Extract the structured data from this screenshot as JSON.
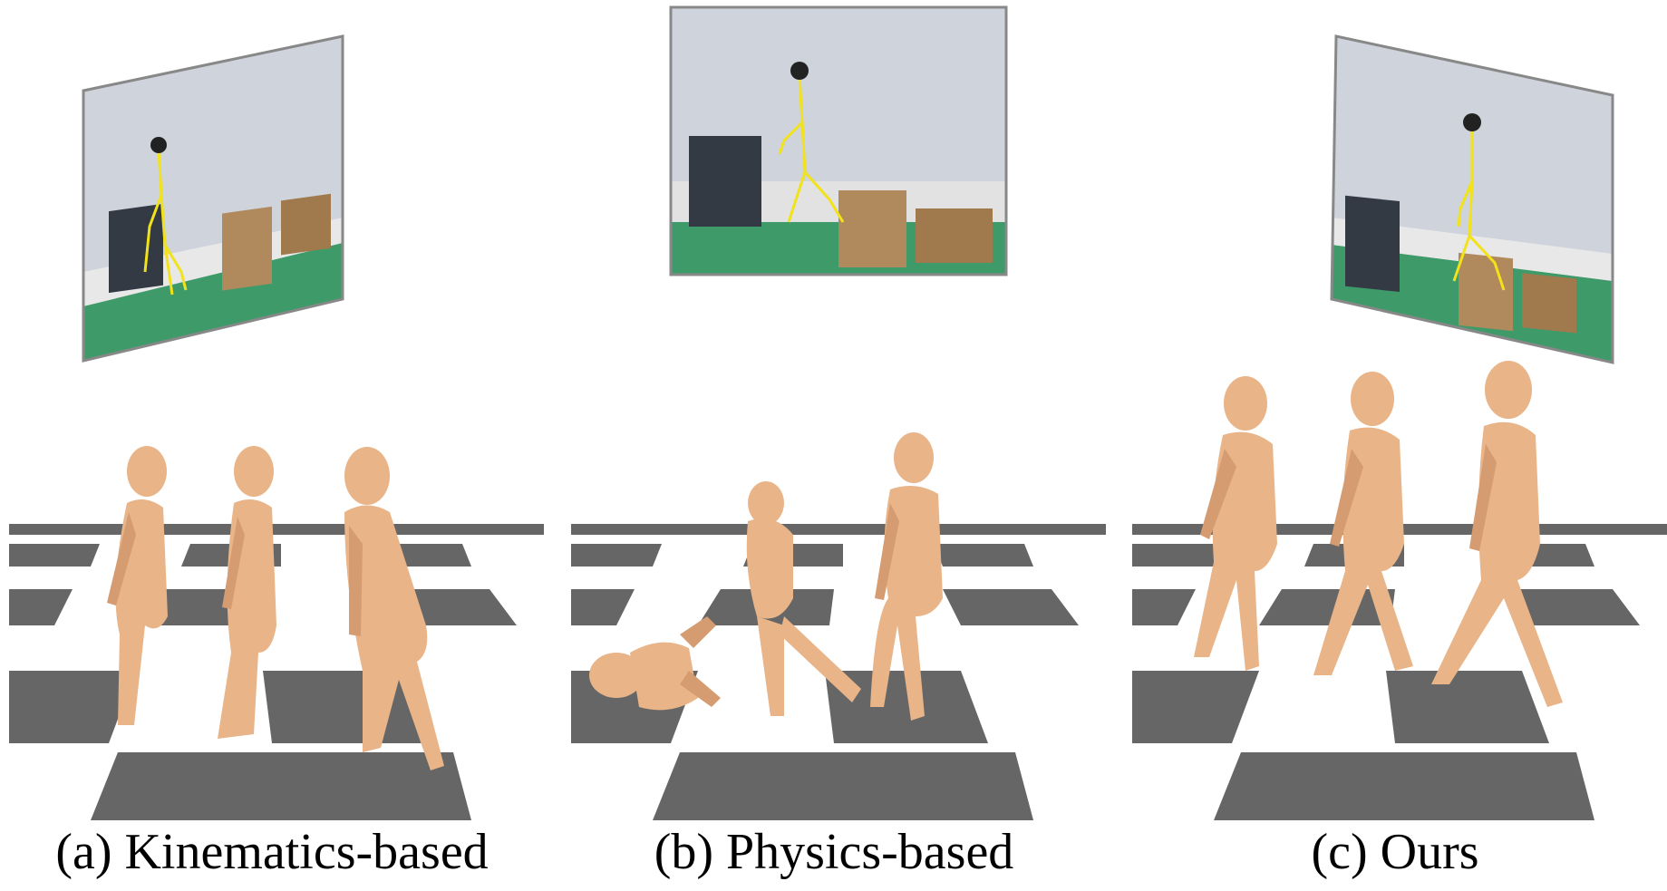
{
  "figure": {
    "panels": [
      {
        "id": "a",
        "caption": "(a) Kinematics-based"
      },
      {
        "id": "b",
        "caption": "(b) Physics-based"
      },
      {
        "id": "c",
        "caption": "(c) Ours"
      }
    ]
  },
  "colors": {
    "skin": "#e8b488",
    "skin_shade": "#c98f63",
    "floor_dark": "#666666",
    "floor_light": "#ffffff",
    "skeleton": "#f2e21a",
    "video_floor": "#3f9a6a",
    "video_wall": "#cfd3dc",
    "box": "#b08a5c"
  }
}
